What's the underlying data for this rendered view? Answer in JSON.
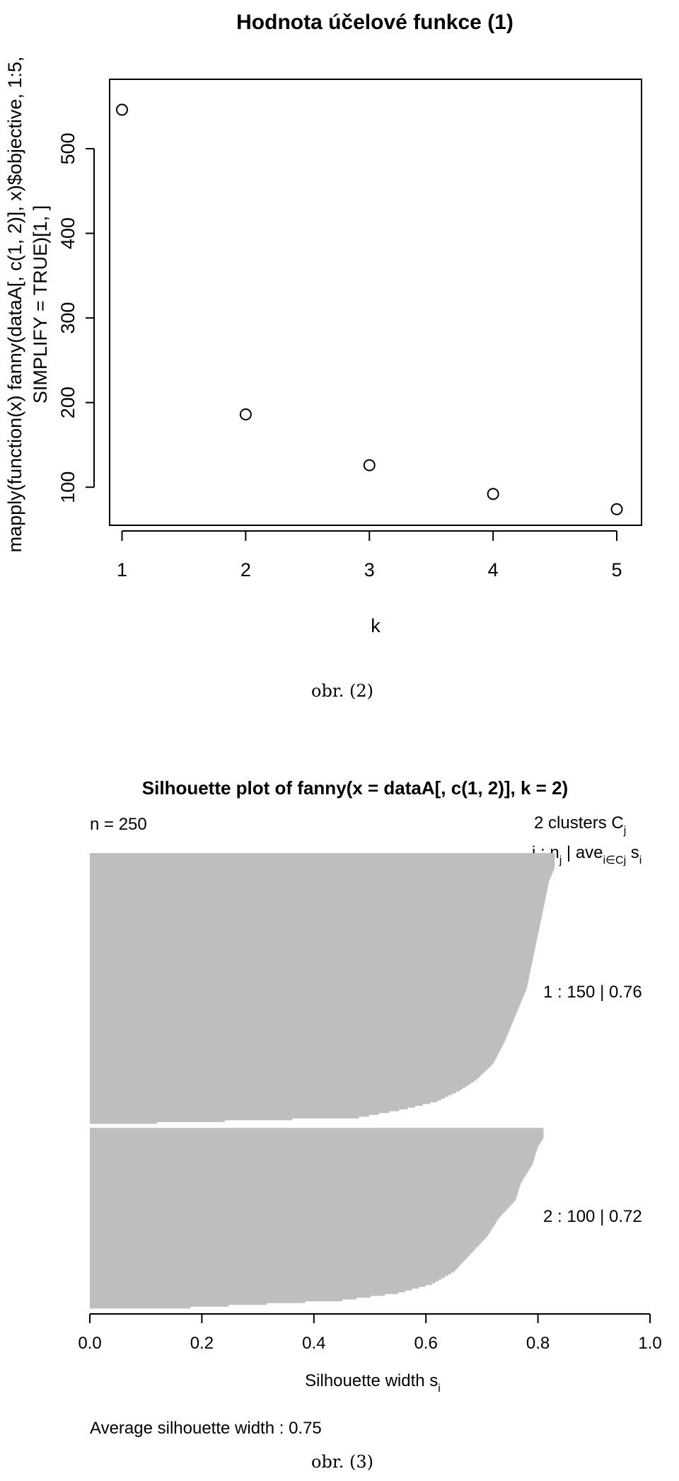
{
  "chart_data": [
    {
      "type": "scatter",
      "title": "Hodnota účelové funkce (1)",
      "xlabel": "k",
      "ylabel_line1": "mapply(function(x) fanny(dataA[, c(1, 2)], x)$objective, 1:5,",
      "ylabel_line2": "SIMPLIFY = TRUE)[1, ]",
      "x": [
        1,
        2,
        3,
        4,
        5
      ],
      "y": [
        546,
        186,
        126,
        92,
        74
      ],
      "xticks": [
        "1",
        "2",
        "3",
        "4",
        "5"
      ],
      "yticks": [
        "100",
        "200",
        "300",
        "400",
        "500"
      ],
      "xlim": [
        0.9,
        5.2
      ],
      "ylim": [
        55,
        582
      ],
      "caption": "obr. (2)"
    },
    {
      "type": "bar",
      "orientation": "horizontal",
      "title": "Silhouette plot of fanny(x = dataA[, c(1, 2)], k = 2)",
      "n_label": "n = 250",
      "clusters_label": "2  clusters  C",
      "clusters_sub": "j",
      "header_j": "j :  n",
      "header_sub_j": "j",
      "header_ave": " | ave",
      "header_sub_ave": "i∈Cj",
      "header_s": "  s",
      "header_sub_i": "i",
      "clusters": [
        {
          "label": "1 :   150   |  0.76",
          "n": 150,
          "ave": 0.76,
          "profile": [
            [
              0,
              0.83
            ],
            [
              0.05,
              0.83
            ],
            [
              0.1,
              0.82
            ],
            [
              0.2,
              0.81
            ],
            [
              0.3,
              0.8
            ],
            [
              0.4,
              0.79
            ],
            [
              0.5,
              0.78
            ],
            [
              0.6,
              0.76
            ],
            [
              0.7,
              0.74
            ],
            [
              0.78,
              0.72
            ],
            [
              0.84,
              0.69
            ],
            [
              0.88,
              0.66
            ],
            [
              0.92,
              0.62
            ],
            [
              0.95,
              0.56
            ],
            [
              0.98,
              0.48
            ],
            [
              1.0,
              0.12
            ]
          ]
        },
        {
          "label": "2 :   100   |  0.72",
          "n": 100,
          "ave": 0.72,
          "profile": [
            [
              0,
              0.81
            ],
            [
              0.05,
              0.81
            ],
            [
              0.1,
              0.8
            ],
            [
              0.2,
              0.79
            ],
            [
              0.3,
              0.77
            ],
            [
              0.4,
              0.76
            ],
            [
              0.5,
              0.73
            ],
            [
              0.6,
              0.71
            ],
            [
              0.7,
              0.68
            ],
            [
              0.8,
              0.65
            ],
            [
              0.87,
              0.61
            ],
            [
              0.92,
              0.55
            ],
            [
              0.96,
              0.45
            ],
            [
              1.0,
              0.18
            ]
          ]
        }
      ],
      "xlabel": "Silhouette width s",
      "xlabel_sub": "i",
      "xticks": [
        "0.0",
        "0.2",
        "0.4",
        "0.6",
        "0.8",
        "1.0"
      ],
      "xlim": [
        0,
        1
      ],
      "avg_label": "Average silhouette width :  0.75",
      "bar_color": "#bebebe",
      "caption": "obr. (3)"
    }
  ]
}
